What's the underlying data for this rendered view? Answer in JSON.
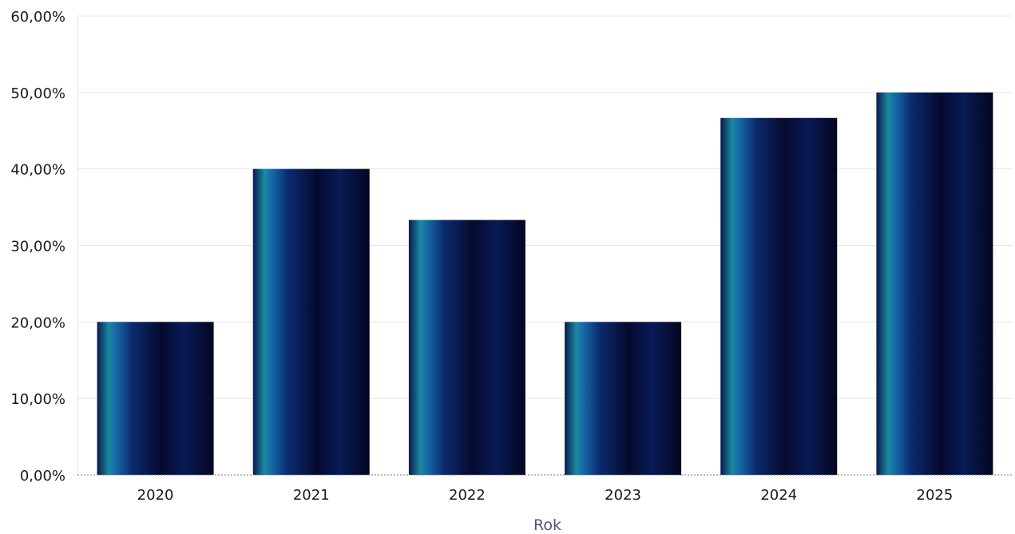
{
  "chart_data": {
    "type": "bar",
    "title": "",
    "xlabel": "Rok",
    "ylabel": "",
    "categories": [
      "2020",
      "2021",
      "2022",
      "2023",
      "2024",
      "2025"
    ],
    "values": [
      0.2,
      0.4,
      0.3333,
      0.2,
      0.4667,
      0.5
    ],
    "ylim": [
      0,
      0.6
    ],
    "yticks": [
      0,
      0.1,
      0.2,
      0.3,
      0.4,
      0.5,
      0.6
    ],
    "ytick_labels": [
      "0,00%",
      "10,00%",
      "20,00%",
      "30,00%",
      "40,00%",
      "50,00%",
      "60,00%"
    ],
    "grid": true,
    "legend": "none",
    "colors": {
      "bar_dark": "#050a2e",
      "bar_mid": "#0b2b6f",
      "bar_teal": "#1a8aa0",
      "axis_title": "#4a5578",
      "grid": "#e4e4e8"
    }
  }
}
